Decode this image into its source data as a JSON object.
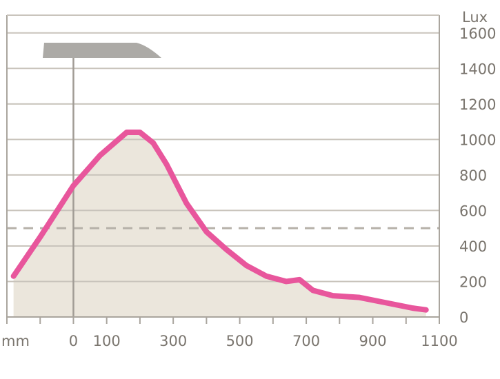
{
  "chart_data": {
    "type": "area",
    "x_unit_label": "mm",
    "y_unit_label": "Lux",
    "xlim": [
      -200,
      1100
    ],
    "ylim": [
      0,
      1700
    ],
    "x_tick_labels": [
      {
        "x": 0,
        "label": "0"
      },
      {
        "x": 100,
        "label": "100"
      },
      {
        "x": 300,
        "label": "300"
      },
      {
        "x": 500,
        "label": "500"
      },
      {
        "x": 700,
        "label": "700"
      },
      {
        "x": 900,
        "label": "900"
      },
      {
        "x": 1100,
        "label": "1100"
      }
    ],
    "x_minor_ticks": [
      -200,
      -100,
      0,
      100,
      200,
      300,
      400,
      500,
      600,
      700,
      800,
      900,
      1000,
      1100
    ],
    "y_ticks": [
      {
        "y": 0,
        "label": "0"
      },
      {
        "y": 200,
        "label": "200"
      },
      {
        "y": 400,
        "label": "400"
      },
      {
        "y": 600,
        "label": "600"
      },
      {
        "y": 800,
        "label": "800"
      },
      {
        "y": 1000,
        "label": "1000"
      },
      {
        "y": 1200,
        "label": "1200"
      },
      {
        "y": 1400,
        "label": "1400"
      },
      {
        "y": 1600,
        "label": "1600"
      }
    ],
    "grid": true,
    "reference_line": {
      "y": 500,
      "style": "dashed"
    },
    "lamp_position_x": 0,
    "series": [
      {
        "color": "#e8569c",
        "fill": "#ebe6dc",
        "points": [
          [
            -180,
            230
          ],
          [
            -100,
            450
          ],
          [
            0,
            740
          ],
          [
            80,
            910
          ],
          [
            160,
            1040
          ],
          [
            200,
            1040
          ],
          [
            240,
            980
          ],
          [
            280,
            860
          ],
          [
            340,
            640
          ],
          [
            400,
            480
          ],
          [
            460,
            380
          ],
          [
            520,
            290
          ],
          [
            580,
            230
          ],
          [
            640,
            200
          ],
          [
            680,
            210
          ],
          [
            720,
            150
          ],
          [
            780,
            120
          ],
          [
            860,
            110
          ],
          [
            940,
            80
          ],
          [
            1020,
            50
          ],
          [
            1060,
            40
          ]
        ]
      }
    ],
    "colors": {
      "axis": "#aaa59e",
      "grid": "#c9c4bc",
      "reference_line": "#b5b0a8",
      "lamp": "#acaaa6",
      "lamp_post": "#a19c95"
    }
  }
}
